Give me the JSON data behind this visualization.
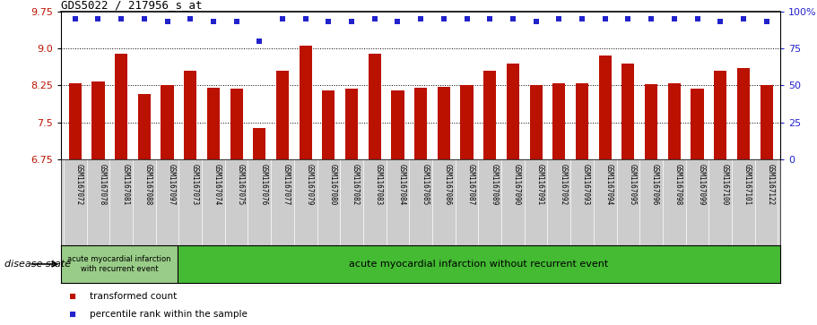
{
  "title": "GDS5022 / 217956_s_at",
  "samples": [
    "GSM1167072",
    "GSM1167078",
    "GSM1167081",
    "GSM1167088",
    "GSM1167097",
    "GSM1167073",
    "GSM1167074",
    "GSM1167075",
    "GSM1167076",
    "GSM1167077",
    "GSM1167079",
    "GSM1167080",
    "GSM1167082",
    "GSM1167083",
    "GSM1167084",
    "GSM1167085",
    "GSM1167086",
    "GSM1167087",
    "GSM1167089",
    "GSM1167090",
    "GSM1167091",
    "GSM1167092",
    "GSM1167093",
    "GSM1167094",
    "GSM1167095",
    "GSM1167096",
    "GSM1167098",
    "GSM1167099",
    "GSM1167100",
    "GSM1167101",
    "GSM1167122"
  ],
  "bar_values": [
    8.3,
    8.32,
    8.9,
    8.08,
    8.25,
    8.55,
    8.2,
    8.18,
    7.38,
    8.55,
    9.05,
    8.15,
    8.18,
    8.9,
    8.15,
    8.2,
    8.22,
    8.25,
    8.55,
    8.7,
    8.25,
    8.3,
    8.3,
    8.85,
    8.7,
    8.28,
    8.3,
    8.18,
    8.55,
    8.6,
    8.25
  ],
  "percentile_values": [
    95,
    95,
    95,
    95,
    93,
    95,
    93,
    93,
    80,
    95,
    95,
    93,
    93,
    95,
    93,
    95,
    95,
    95,
    95,
    95,
    93,
    95,
    95,
    95,
    95,
    95,
    95,
    95,
    93,
    95,
    93
  ],
  "bar_color": "#bb1100",
  "dot_color": "#2222cc",
  "ylim_left": [
    6.75,
    9.75
  ],
  "ylim_right": [
    0,
    100
  ],
  "yticks_left": [
    6.75,
    7.5,
    8.25,
    9.0,
    9.75
  ],
  "yticks_right": [
    0,
    25,
    50,
    75,
    100
  ],
  "grid_lines": [
    7.5,
    8.25,
    9.0
  ],
  "group1_label": "acute myocardial infarction\nwith recurrent event",
  "group2_label": "acute myocardial infarction without recurrent event",
  "group1_count": 5,
  "disease_state_label": "disease state",
  "legend_bar_label": "transformed count",
  "legend_dot_label": "percentile rank within the sample",
  "xlabel_bg_color": "#cccccc",
  "group1_bg_color": "#99cc88",
  "group2_bg_color": "#44bb33",
  "plot_bg": "#ffffff"
}
